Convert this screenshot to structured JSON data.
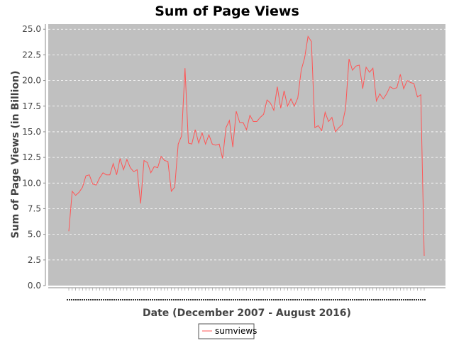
{
  "chart_data": {
    "type": "line",
    "title": "Sum of Page Views",
    "xlabel": "Date (December 2007 - August 2016)",
    "ylabel": "Sum of Page Views (in Billion)",
    "ylim": [
      0,
      25.5
    ],
    "yticks": [
      "0.0",
      "2.5",
      "5.0",
      "7.5",
      "10.0",
      "12.5",
      "15.0",
      "17.5",
      "20.0",
      "22.5",
      "25.0"
    ],
    "x": [
      "2007-12",
      "2008-01",
      "2008-02",
      "2008-03",
      "2008-04",
      "2008-05",
      "2008-06",
      "2008-07",
      "2008-08",
      "2008-09",
      "2008-10",
      "2008-11",
      "2008-12",
      "2009-01",
      "2009-02",
      "2009-03",
      "2009-04",
      "2009-05",
      "2009-06",
      "2009-07",
      "2009-08",
      "2009-09",
      "2009-10",
      "2009-11",
      "2009-12",
      "2010-01",
      "2010-02",
      "2010-03",
      "2010-04",
      "2010-05",
      "2010-06",
      "2010-07",
      "2010-08",
      "2010-09",
      "2010-10",
      "2010-11",
      "2010-12",
      "2011-01",
      "2011-02",
      "2011-03",
      "2011-04",
      "2011-05",
      "2011-06",
      "2011-07",
      "2011-08",
      "2011-09",
      "2011-10",
      "2011-11",
      "2011-12",
      "2012-01",
      "2012-02",
      "2012-03",
      "2012-04",
      "2012-05",
      "2012-06",
      "2012-07",
      "2012-08",
      "2012-09",
      "2012-10",
      "2012-11",
      "2012-12",
      "2013-01",
      "2013-02",
      "2013-03",
      "2013-04",
      "2013-05",
      "2013-06",
      "2013-07",
      "2013-08",
      "2013-09",
      "2013-10",
      "2013-11",
      "2013-12",
      "2014-01",
      "2014-02",
      "2014-03",
      "2014-04",
      "2014-05",
      "2014-06",
      "2014-07",
      "2014-08",
      "2014-09",
      "2014-10",
      "2014-11",
      "2014-12",
      "2015-01",
      "2015-02",
      "2015-03",
      "2015-04",
      "2015-05",
      "2015-06",
      "2015-07",
      "2015-08",
      "2015-09",
      "2015-10",
      "2015-11",
      "2015-12",
      "2016-01",
      "2016-02",
      "2016-03",
      "2016-04",
      "2016-05",
      "2016-06",
      "2016-07",
      "2016-08"
    ],
    "series": [
      {
        "name": "sumviews",
        "color": "#ff5555",
        "values": [
          5.3,
          9.2,
          8.8,
          9.1,
          9.6,
          10.7,
          10.8,
          9.9,
          9.8,
          10.5,
          11.0,
          10.8,
          10.8,
          11.9,
          10.8,
          12.4,
          11.3,
          12.3,
          11.5,
          11.1,
          11.3,
          8.0,
          12.2,
          12.0,
          11.0,
          11.6,
          11.5,
          12.6,
          12.2,
          12.1,
          9.2,
          9.6,
          13.8,
          14.6,
          21.2,
          13.9,
          13.8,
          15.2,
          13.9,
          14.9,
          13.8,
          14.7,
          13.8,
          13.7,
          13.8,
          12.4,
          15.4,
          16.1,
          13.5,
          17.0,
          15.9,
          15.9,
          15.2,
          16.6,
          16.0,
          16.0,
          16.4,
          16.7,
          18.1,
          17.8,
          17.1,
          19.4,
          17.3,
          19.0,
          17.5,
          18.2,
          17.5,
          18.3,
          21.0,
          22.2,
          24.3,
          23.8,
          15.4,
          15.6,
          15.1,
          16.9,
          16.0,
          16.4,
          15.0,
          15.4,
          15.7,
          17.3,
          22.1,
          21.0,
          21.4,
          21.5,
          19.2,
          21.3,
          20.8,
          21.2,
          18.0,
          18.7,
          18.2,
          18.7,
          19.4,
          19.2,
          19.3,
          20.6,
          19.2,
          20.0,
          19.8,
          19.7,
          18.4,
          18.6,
          2.9
        ]
      }
    ],
    "background": "#c0c0c0",
    "gridline_color": "#ffffff",
    "grid": true,
    "legend_position": "bottom"
  }
}
